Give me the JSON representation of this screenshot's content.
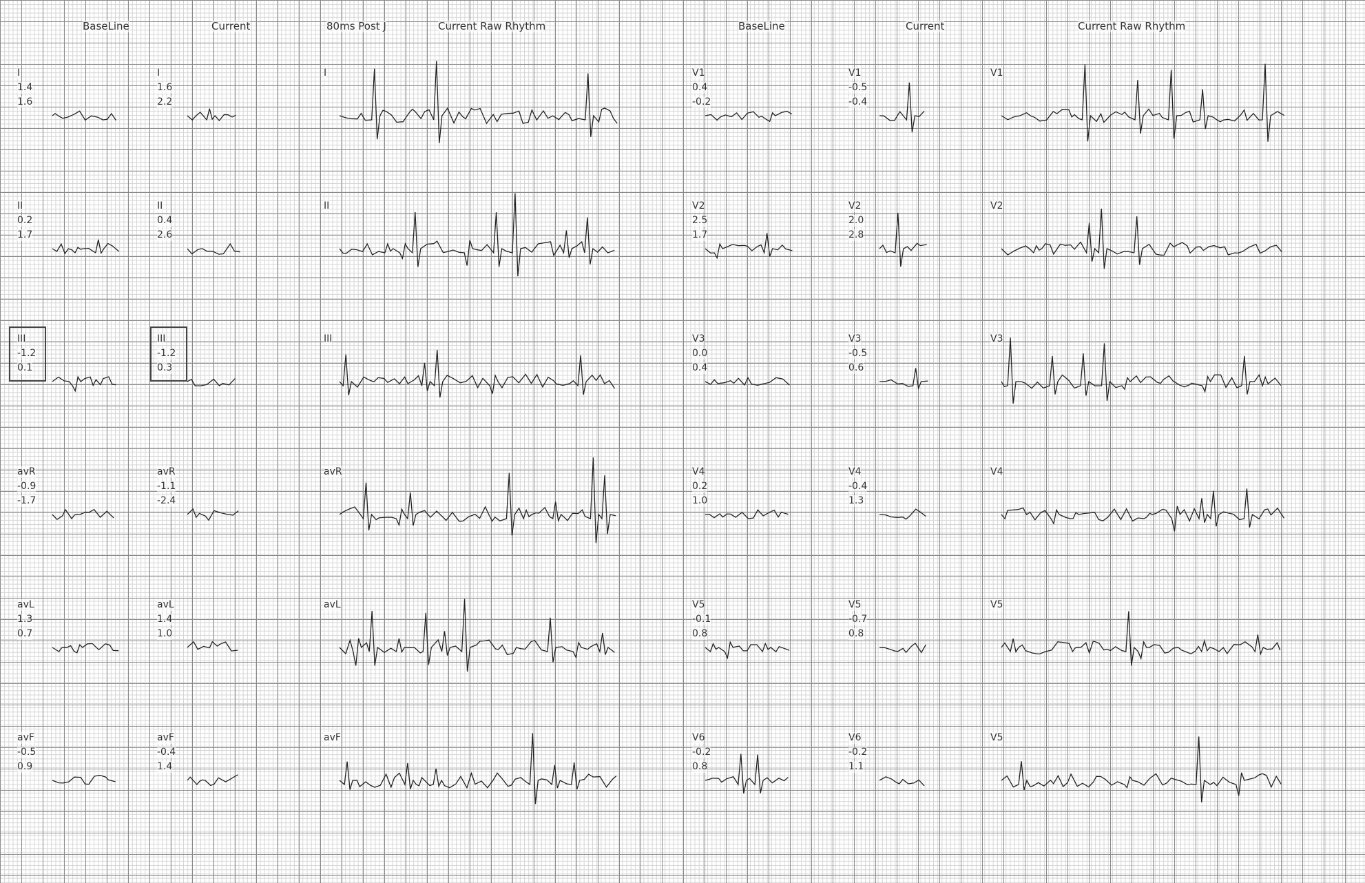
{
  "column_headers": [
    "BaseLine",
    "Current",
    "80ms Post J",
    "Current Raw Rhythm",
    "BaseLine",
    "Current",
    "Current Raw Rhythm"
  ],
  "limb_leads": [
    {
      "lead": "I",
      "baseline": [
        "1.4",
        "1.6"
      ],
      "current_lead": "I",
      "current": [
        "1.6",
        "2.2"
      ],
      "rhythm_lead": "I"
    },
    {
      "lead": "II",
      "baseline": [
        "0.2",
        "1.7"
      ],
      "current_lead": "II",
      "current": [
        "0.4",
        "2.6"
      ],
      "rhythm_lead": "II"
    },
    {
      "lead": "III",
      "baseline": [
        "-1.2",
        "0.1"
      ],
      "current_lead": "III",
      "current": [
        "-1.2",
        "0.3"
      ],
      "rhythm_lead": "III"
    },
    {
      "lead": "avR",
      "baseline": [
        "-0.9",
        "-1.7"
      ],
      "current_lead": "avR",
      "current": [
        "-1.1",
        "-2.4"
      ],
      "rhythm_lead": "avR"
    },
    {
      "lead": "avL",
      "baseline": [
        "1.3",
        "0.7"
      ],
      "current_lead": "avL",
      "current": [
        "1.4",
        "1.0"
      ],
      "rhythm_lead": "avL"
    },
    {
      "lead": "avF",
      "baseline": [
        "-0.5",
        "0.9"
      ],
      "current_lead": "avF",
      "current": [
        "-0.4",
        "1.4"
      ],
      "rhythm_lead": "avF"
    }
  ],
  "chest_leads": [
    {
      "lead": "V1",
      "baseline": [
        "0.4",
        "-0.2"
      ],
      "current_lead": "V1",
      "current": [
        "-0.5",
        "-0.4"
      ],
      "rhythm_lead": "V1"
    },
    {
      "lead": "V2",
      "baseline": [
        "2.5",
        "1.7"
      ],
      "current_lead": "V2",
      "current": [
        "2.0",
        "2.8"
      ],
      "rhythm_lead": "V2"
    },
    {
      "lead": "V3",
      "baseline": [
        "0.0",
        "0.4"
      ],
      "current_lead": "V3",
      "current": [
        "-0.5",
        "0.6"
      ],
      "rhythm_lead": "V3"
    },
    {
      "lead": "V4",
      "baseline": [
        "0.2",
        "1.0"
      ],
      "current_lead": "V4",
      "current": [
        "-0.4",
        "1.3"
      ],
      "rhythm_lead": "V4"
    },
    {
      "lead": "V5",
      "baseline": [
        "-0.1",
        "0.8"
      ],
      "current_lead": "V5",
      "current": [
        "-0.7",
        "0.8"
      ],
      "rhythm_lead": "V5"
    },
    {
      "lead": "V6",
      "baseline": [
        "-0.2",
        "0.8"
      ],
      "current_lead": "V6",
      "current": [
        "-0.2",
        "1.1"
      ],
      "rhythm_lead": "V5"
    }
  ]
}
